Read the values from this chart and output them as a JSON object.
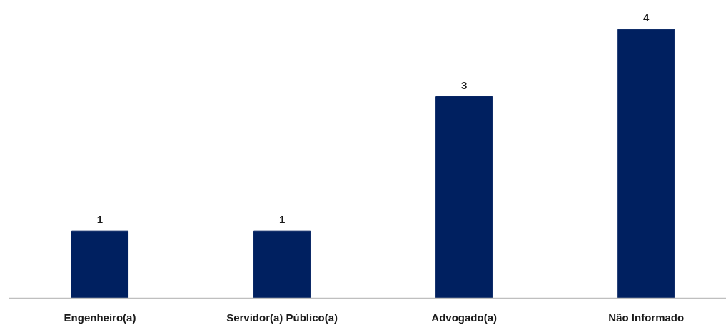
{
  "chart_data": {
    "type": "bar",
    "categories": [
      "Engenheiro(a)",
      "Servidor(a) Público(a)",
      "Advogado(a)",
      "Não Informado"
    ],
    "values": [
      1,
      1,
      3,
      4
    ],
    "color": "#002060",
    "data_labels": true,
    "tick_labels": "x"
  }
}
